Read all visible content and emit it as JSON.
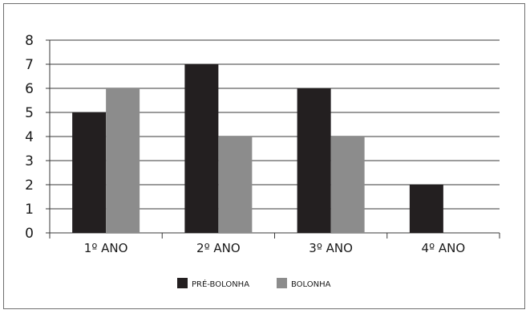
{
  "chart_data": {
    "type": "bar",
    "categories": [
      "1º ANO",
      "2º ANO",
      "3º ANO",
      "4º ANO"
    ],
    "series": [
      {
        "name": "PRÉ-BOLONHA",
        "values": [
          5,
          7,
          6,
          2
        ],
        "color": "#231f20"
      },
      {
        "name": "BOLONHA",
        "values": [
          6,
          4,
          4,
          0
        ],
        "color": "#8c8c8c"
      }
    ],
    "ylim": [
      0,
      8
    ],
    "yticks": [
      "0",
      "1",
      "2",
      "3",
      "4",
      "5",
      "6",
      "7",
      "8"
    ],
    "grid": true,
    "legend": "bottom"
  }
}
